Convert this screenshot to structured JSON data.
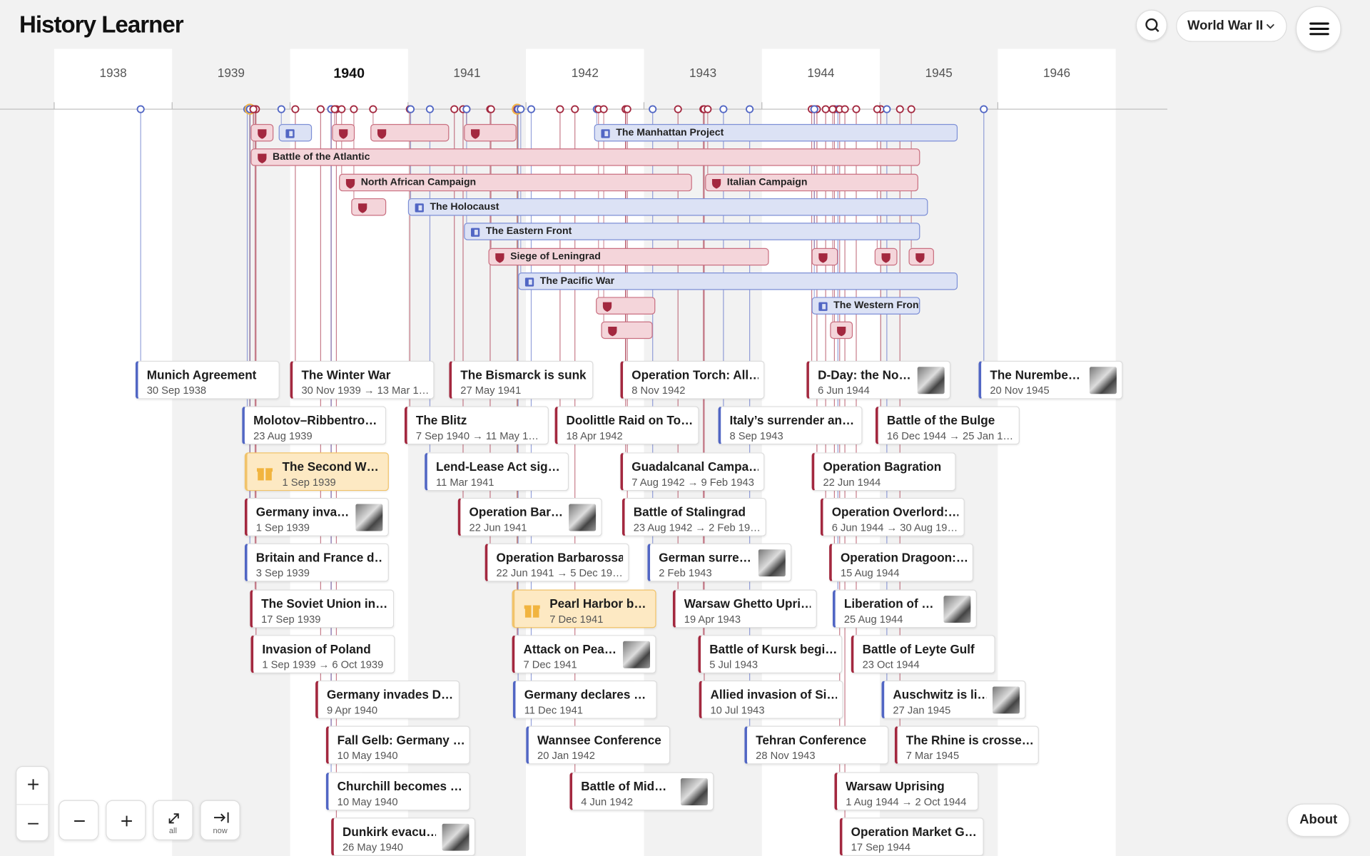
{
  "header": {
    "title": "History Learner",
    "era_selector": "World War II"
  },
  "years": [
    "1938",
    "1939",
    "1940",
    "1941",
    "1942",
    "1943",
    "1944",
    "1945",
    "1946"
  ],
  "spans": [
    "The Manhattan Project",
    "Battle of the Atlantic",
    "North African Campaign",
    "Italian Campaign",
    "The Holocaust",
    "The Eastern Front",
    "Siege of Leningrad",
    "The Pacific War",
    "The Western Front"
  ],
  "events": [
    {
      "title": "Munich Agreement",
      "date": "30 Sep 1938"
    },
    {
      "title": "The Winter War",
      "date": "30 Nov 1939 → 13 Mar 1…"
    },
    {
      "title": "The Bismarck is sunk",
      "date": "27 May 1941"
    },
    {
      "title": "Operation Torch: All…",
      "date": "8 Nov 1942"
    },
    {
      "title": "D-Day: the No…",
      "date": "6 Jun 1944"
    },
    {
      "title": "The Nurembe…",
      "date": "20 Nov 1945"
    },
    {
      "title": "Molotov–Ribbentro…",
      "date": "23 Aug 1939"
    },
    {
      "title": "The Blitz",
      "date": "7 Sep 1940 → 11 May 1…"
    },
    {
      "title": "Doolittle Raid on To…",
      "date": "18 Apr 1942"
    },
    {
      "title": "Italy’s surrender an…",
      "date": "8 Sep 1943"
    },
    {
      "title": "Battle of the Bulge",
      "date": "16 Dec 1944 → 25 Jan 1…"
    },
    {
      "title": "The Second W…",
      "date": "1 Sep 1939"
    },
    {
      "title": "Lend-Lease Act sig…",
      "date": "11 Mar 1941"
    },
    {
      "title": "Guadalcanal Campa…",
      "date": "7 Aug 1942 → 9 Feb 1943"
    },
    {
      "title": "Operation Bagration",
      "date": "22 Jun 1944"
    },
    {
      "title": "Germany inva…",
      "date": "1 Sep 1939"
    },
    {
      "title": "Operation Bar…",
      "date": "22 Jun 1941"
    },
    {
      "title": "Battle of Stalingrad",
      "date": "23 Aug 1942 → 2 Feb 19…"
    },
    {
      "title": "Operation Overlord:…",
      "date": "6 Jun 1944 → 30 Aug 19…"
    },
    {
      "title": "Britain and France d…",
      "date": "3 Sep 1939"
    },
    {
      "title": "Operation Barbarossa",
      "date": "22 Jun 1941 → 5 Dec 19…"
    },
    {
      "title": "German surre…",
      "date": "2 Feb 1943"
    },
    {
      "title": "Operation Dragoon:…",
      "date": "15 Aug 1944"
    },
    {
      "title": "The Soviet Union in…",
      "date": "17 Sep 1939"
    },
    {
      "title": "Pearl Harbor b…",
      "date": "7 Dec 1941"
    },
    {
      "title": "Warsaw Ghetto Upri…",
      "date": "19 Apr 1943"
    },
    {
      "title": "Liberation of …",
      "date": "25 Aug 1944"
    },
    {
      "title": "Invasion of Poland",
      "date": "1 Sep 1939 → 6 Oct 1939"
    },
    {
      "title": "Attack on Pea…",
      "date": "7 Dec 1941"
    },
    {
      "title": "Battle of Kursk begi…",
      "date": "5 Jul 1943"
    },
    {
      "title": "Battle of Leyte Gulf",
      "date": "23 Oct 1944"
    },
    {
      "title": "Germany invades D…",
      "date": "9 Apr 1940"
    },
    {
      "title": "Germany declares …",
      "date": "11 Dec 1941"
    },
    {
      "title": "Allied invasion of Si…",
      "date": "10 Jul 1943"
    },
    {
      "title": "Auschwitz is li…",
      "date": "27 Jan 1945"
    },
    {
      "title": "Fall Gelb: Germany …",
      "date": "10 May 1940"
    },
    {
      "title": "Wannsee Conference",
      "date": "20 Jan 1942"
    },
    {
      "title": "Tehran Conference",
      "date": "28 Nov 1943"
    },
    {
      "title": "The Rhine is crosse…",
      "date": "7 Mar 1945"
    },
    {
      "title": "Churchill becomes …",
      "date": "10 May 1940"
    },
    {
      "title": "Battle of Mid…",
      "date": "4 Jun 1942"
    },
    {
      "title": "Warsaw Uprising",
      "date": "1 Aug 1944 → 2 Oct 1944"
    },
    {
      "title": "Dunkirk evacu…",
      "date": "26 May 1940"
    },
    {
      "title": "Operation Market G…",
      "date": "17 Sep 1944"
    }
  ],
  "controls": {
    "all": "all",
    "now": "now",
    "about": "About"
  }
}
